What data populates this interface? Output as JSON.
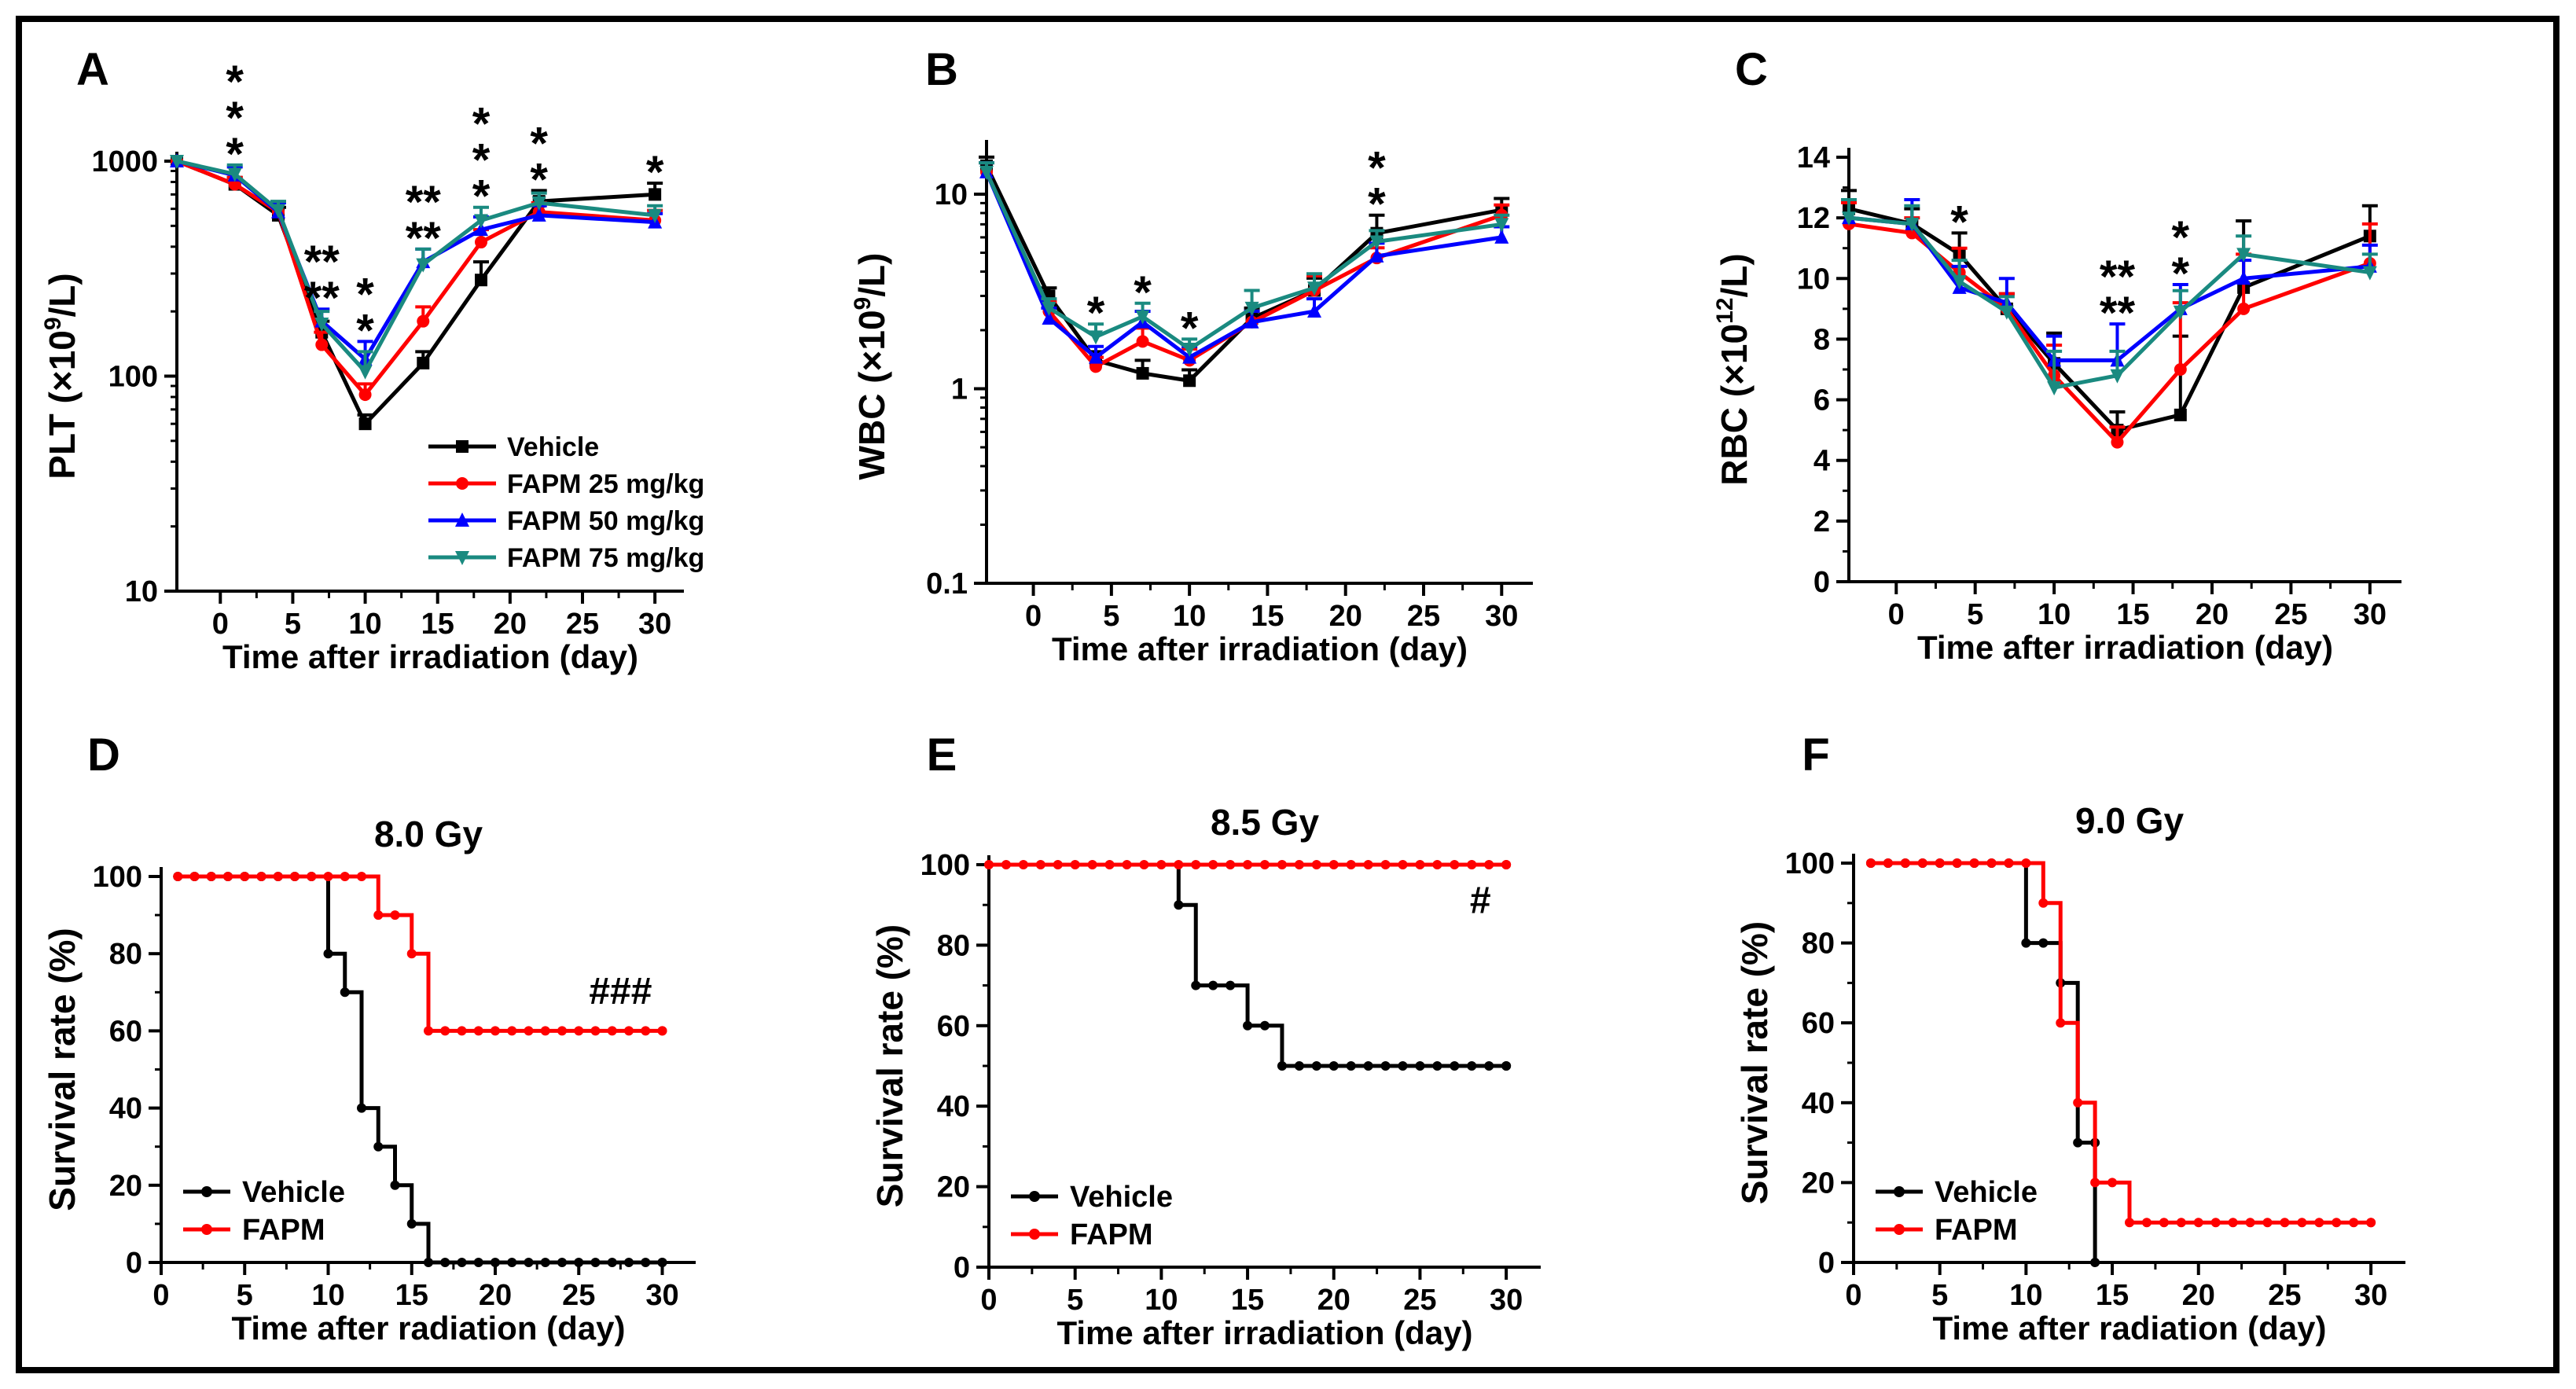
{
  "chart_data": [
    {
      "panel": "A",
      "type": "line",
      "ylabel": "PLT (×10⁹/L)",
      "ylabel_pre": "PLT (×10",
      "ylabel_sup": "9",
      "ylabel_post": "/L)",
      "xlabel": "Time after irradiation (day)",
      "yscale": "log",
      "ylim": [
        10,
        1000
      ],
      "xlim": [
        -3,
        32
      ],
      "xticks": [
        0,
        5,
        10,
        15,
        20,
        25,
        30
      ],
      "yticks": [
        10,
        100,
        1000
      ],
      "ytick_labels": [
        "10",
        "100",
        "1000"
      ],
      "x": [
        -3,
        1,
        4,
        7,
        10,
        14,
        18,
        22,
        30
      ],
      "legend": "right",
      "series": [
        {
          "name": "Vehicle",
          "color": "#000000",
          "marker": "square",
          "values": [
            1000,
            780,
            560,
            160,
            60,
            115,
            280,
            650,
            700
          ],
          "err": [
            0,
            60,
            50,
            20,
            6,
            15,
            60,
            80,
            90
          ]
        },
        {
          "name": "FAPM 25 mg/kg",
          "color": "#ff0000",
          "marker": "circle",
          "values": [
            1000,
            780,
            580,
            140,
            82,
            180,
            420,
            580,
            530
          ],
          "err": [
            0,
            60,
            60,
            20,
            10,
            30,
            60,
            60,
            60
          ]
        },
        {
          "name": "FAPM 50 mg/kg",
          "color": "#0000ff",
          "marker": "triangle-up",
          "values": [
            1000,
            860,
            580,
            180,
            120,
            340,
            480,
            560,
            520
          ],
          "err": [
            0,
            80,
            60,
            25,
            25,
            50,
            70,
            60,
            50
          ]
        },
        {
          "name": "FAPM 75 mg/kg",
          "color": "#1a8a80",
          "marker": "triangle-down",
          "values": [
            1000,
            870,
            590,
            175,
            105,
            330,
            530,
            640,
            560
          ],
          "err": [
            0,
            90,
            60,
            25,
            25,
            60,
            80,
            70,
            60
          ]
        }
      ],
      "annotations": [
        {
          "x": 1,
          "rows": [
            {
              "text": "*",
              "color": "#3a8a80"
            },
            {
              "text": "*",
              "color": "#0000ff"
            },
            {
              "text": "*",
              "color": "#ff0000"
            }
          ]
        },
        {
          "x": 7,
          "rows": [
            {
              "text": "**",
              "color": "#3a8a80"
            },
            {
              "text": "**",
              "color": "#0000ff"
            }
          ]
        },
        {
          "x": 10,
          "rows": [
            {
              "text": "*",
              "color": "#3a8a80"
            },
            {
              "text": "*",
              "color": "#0000ff"
            }
          ]
        },
        {
          "x": 14,
          "rows": [
            {
              "text": "**",
              "color": "#3a8a80"
            },
            {
              "text": "**",
              "color": "#0000ff"
            }
          ]
        },
        {
          "x": 18,
          "rows": [
            {
              "text": "*",
              "color": "#3a8a80"
            },
            {
              "text": "*",
              "color": "#0000ff"
            },
            {
              "text": "*",
              "color": "#ff0000"
            }
          ]
        },
        {
          "x": 22,
          "rows": [
            {
              "text": "*",
              "color": "#3a8a80"
            },
            {
              "text": "*",
              "color": "#ff0000"
            }
          ]
        },
        {
          "x": 30,
          "rows": [
            {
              "text": "*",
              "color": "#ff0000"
            }
          ]
        }
      ]
    },
    {
      "panel": "B",
      "type": "line",
      "ylabel": "WBC (×10⁹/L)",
      "ylabel_pre": "WBC (×10",
      "ylabel_sup": "9",
      "ylabel_post": "/L)",
      "xlabel": "Time after irradiation (day)",
      "yscale": "log",
      "ylim": [
        0.1,
        17
      ],
      "xlim": [
        -3,
        32
      ],
      "xticks": [
        0,
        5,
        10,
        15,
        20,
        25,
        30
      ],
      "yticks": [
        0.1,
        1,
        10
      ],
      "ytick_labels": [
        "0.1",
        "1",
        "10"
      ],
      "x": [
        -3,
        1,
        4,
        7,
        10,
        14,
        18,
        22,
        30
      ],
      "series": [
        {
          "name": "Vehicle",
          "color": "#000000",
          "marker": "square",
          "values": [
            14,
            3.0,
            1.4,
            1.2,
            1.1,
            2.3,
            3.2,
            6.3,
            8.3
          ],
          "err": [
            1.5,
            0.3,
            0.15,
            0.2,
            0.15,
            0.3,
            0.5,
            1.5,
            1.2
          ]
        },
        {
          "name": "FAPM 25 mg/kg",
          "color": "#ff0000",
          "marker": "circle",
          "values": [
            13,
            2.5,
            1.3,
            1.75,
            1.4,
            2.2,
            3.2,
            4.7,
            7.8
          ],
          "err": [
            1.5,
            0.3,
            0.15,
            0.3,
            0.2,
            0.3,
            0.6,
            0.6,
            1.0
          ]
        },
        {
          "name": "FAPM 50 mg/kg",
          "color": "#0000ff",
          "marker": "triangle-up",
          "values": [
            13,
            2.3,
            1.45,
            2.2,
            1.45,
            2.2,
            2.5,
            4.8,
            6.0
          ],
          "err": [
            1.5,
            0.3,
            0.2,
            0.3,
            0.2,
            0.3,
            0.4,
            0.8,
            0.8
          ]
        },
        {
          "name": "FAPM 75 mg/kg",
          "color": "#1a8a80",
          "marker": "triangle-down",
          "values": [
            13,
            2.6,
            1.85,
            2.35,
            1.6,
            2.6,
            3.3,
            5.7,
            7.0
          ],
          "err": [
            1.5,
            0.3,
            0.3,
            0.4,
            0.2,
            0.6,
            0.6,
            0.8,
            0.8
          ]
        }
      ],
      "annotations": [
        {
          "x": 4,
          "rows": [
            {
              "text": "*",
              "color": "#3a8a80"
            }
          ]
        },
        {
          "x": 7,
          "rows": [
            {
              "text": "*",
              "color": "#3a8a80"
            }
          ]
        },
        {
          "x": 10,
          "rows": [
            {
              "text": "*",
              "color": "#3a8a80"
            }
          ]
        },
        {
          "x": 22,
          "rows": [
            {
              "text": "*",
              "color": "#ff0000"
            },
            {
              "text": "*",
              "color": "#0000ff"
            }
          ]
        }
      ]
    },
    {
      "panel": "C",
      "type": "line",
      "ylabel": "RBC (×10¹²/L)",
      "ylabel_pre": "RBC (×10",
      "ylabel_sup": "12",
      "ylabel_post": "/L)",
      "xlabel": "Time after irradiation (day)",
      "yscale": "linear",
      "ylim": [
        0,
        14
      ],
      "xlim": [
        -3,
        32
      ],
      "xticks": [
        0,
        5,
        10,
        15,
        20,
        25,
        30
      ],
      "yticks": [
        0,
        2,
        4,
        6,
        8,
        10,
        12,
        14
      ],
      "ytick_labels": [
        "0",
        "2",
        "4",
        "6",
        "8",
        "10",
        "12",
        "14"
      ],
      "x": [
        -3,
        1,
        4,
        7,
        10,
        14,
        18,
        22,
        30
      ],
      "series": [
        {
          "name": "Vehicle",
          "color": "#000000",
          "marker": "square",
          "values": [
            12.3,
            11.8,
            10.8,
            9.0,
            7.2,
            5.0,
            5.5,
            9.7,
            11.4
          ],
          "err": [
            0.6,
            0.5,
            0.7,
            0.5,
            1.0,
            0.6,
            2.6,
            2.2,
            1.0
          ]
        },
        {
          "name": "FAPM 25 mg/kg",
          "color": "#ff0000",
          "marker": "circle",
          "values": [
            11.8,
            11.5,
            10.2,
            9.0,
            6.8,
            4.6,
            7.0,
            9.0,
            10.5
          ],
          "err": [
            0.7,
            0.5,
            0.8,
            0.5,
            1.0,
            0.5,
            2.2,
            1.8,
            1.3
          ]
        },
        {
          "name": "FAPM 50 mg/kg",
          "color": "#0000ff",
          "marker": "triangle-up",
          "values": [
            12.0,
            11.8,
            9.7,
            9.2,
            7.3,
            7.3,
            9.0,
            10.0,
            10.4
          ],
          "err": [
            0.6,
            0.8,
            0.7,
            0.8,
            0.8,
            1.2,
            0.8,
            0.6,
            0.7
          ]
        },
        {
          "name": "FAPM 75 mg/kg",
          "color": "#1a8a80",
          "marker": "triangle-down",
          "values": [
            12.0,
            11.8,
            9.9,
            8.9,
            6.4,
            6.8,
            8.9,
            10.8,
            10.2
          ],
          "err": [
            0.6,
            0.6,
            0.7,
            0.5,
            1.2,
            0.8,
            0.7,
            0.6,
            0.6
          ]
        }
      ],
      "annotations": [
        {
          "x": 4,
          "rows": [
            {
              "text": "*",
              "color": "#0000ff"
            }
          ]
        },
        {
          "x": 14,
          "rows": [
            {
              "text": "**",
              "color": "#3a8a80"
            },
            {
              "text": "**",
              "color": "#0000ff"
            }
          ]
        },
        {
          "x": 18,
          "rows": [
            {
              "text": "*",
              "color": "#3a8a80"
            },
            {
              "text": "*",
              "color": "#0000ff"
            }
          ]
        }
      ]
    },
    {
      "panel": "D",
      "type": "line",
      "title": "8.0 Gy",
      "ylabel": "Survival rate (%)",
      "xlabel": "Time after radiation (day)",
      "yscale": "linear",
      "ylim": [
        0,
        100
      ],
      "xlim": [
        0,
        32
      ],
      "xticks": [
        0,
        5,
        10,
        15,
        20,
        25,
        30
      ],
      "yticks": [
        0,
        20,
        40,
        60,
        80,
        100
      ],
      "ytick_labels": [
        "0",
        "20",
        "40",
        "60",
        "80",
        "100"
      ],
      "legend": "bottom-left",
      "series": [
        {
          "name": "Vehicle",
          "color": "#000000",
          "steps": [
            [
              1,
              100
            ],
            [
              10,
              80
            ],
            [
              11,
              70
            ],
            [
              12,
              40
            ],
            [
              13,
              30
            ],
            [
              14,
              20
            ],
            [
              15,
              10
            ],
            [
              16,
              0
            ],
            [
              30,
              0
            ]
          ]
        },
        {
          "name": "FAPM",
          "color": "#ff0000",
          "steps": [
            [
              1,
              100
            ],
            [
              13,
              90
            ],
            [
              15,
              80
            ],
            [
              16,
              60
            ],
            [
              30,
              60
            ]
          ]
        }
      ],
      "annotations": [
        {
          "text": "###",
          "color": "#ff0000",
          "x": 27.5,
          "y": 67
        }
      ]
    },
    {
      "panel": "E",
      "type": "line",
      "title": "8.5 Gy",
      "ylabel": "Survival rate (%)",
      "xlabel": "Time after irradiation (day)",
      "yscale": "linear",
      "ylim": [
        0,
        100
      ],
      "xlim": [
        0,
        32
      ],
      "xticks": [
        0,
        5,
        10,
        15,
        20,
        25,
        30
      ],
      "yticks": [
        0,
        20,
        40,
        60,
        80,
        100
      ],
      "ytick_labels": [
        "0",
        "20",
        "40",
        "60",
        "80",
        "100"
      ],
      "legend": "bottom-left",
      "series": [
        {
          "name": "Vehicle",
          "color": "#000000",
          "steps": [
            [
              11,
              100
            ],
            [
              11,
              90
            ],
            [
              12,
              70
            ],
            [
              15,
              60
            ],
            [
              17,
              50
            ],
            [
              30,
              50
            ]
          ]
        },
        {
          "name": "FAPM",
          "color": "#ff0000",
          "steps": [
            [
              0,
              100
            ],
            [
              30,
              100
            ]
          ]
        }
      ],
      "annotations": [
        {
          "text": "#",
          "color": "#ff0000",
          "x": 28.5,
          "y": 88
        }
      ]
    },
    {
      "panel": "F",
      "type": "line",
      "title": "9.0 Gy",
      "ylabel": "Survival rate (%)",
      "xlabel": "Time after radiation (day)",
      "yscale": "linear",
      "ylim": [
        0,
        100
      ],
      "xlim": [
        0,
        32
      ],
      "xticks": [
        0,
        5,
        10,
        15,
        20,
        25,
        30
      ],
      "yticks": [
        0,
        20,
        40,
        60,
        80,
        100
      ],
      "ytick_labels": [
        "0",
        "20",
        "40",
        "60",
        "80",
        "100"
      ],
      "legend": "bottom-left",
      "series": [
        {
          "name": "Vehicle",
          "color": "#000000",
          "steps": [
            [
              1,
              100
            ],
            [
              10,
              80
            ],
            [
              12,
              70
            ],
            [
              13,
              30
            ],
            [
              14,
              0
            ]
          ]
        },
        {
          "name": "FAPM",
          "color": "#ff0000",
          "steps": [
            [
              1,
              100
            ],
            [
              11,
              90
            ],
            [
              12,
              60
            ],
            [
              13,
              40
            ],
            [
              14,
              20
            ],
            [
              16,
              10
            ],
            [
              30,
              10
            ]
          ]
        }
      ],
      "annotations": []
    }
  ]
}
